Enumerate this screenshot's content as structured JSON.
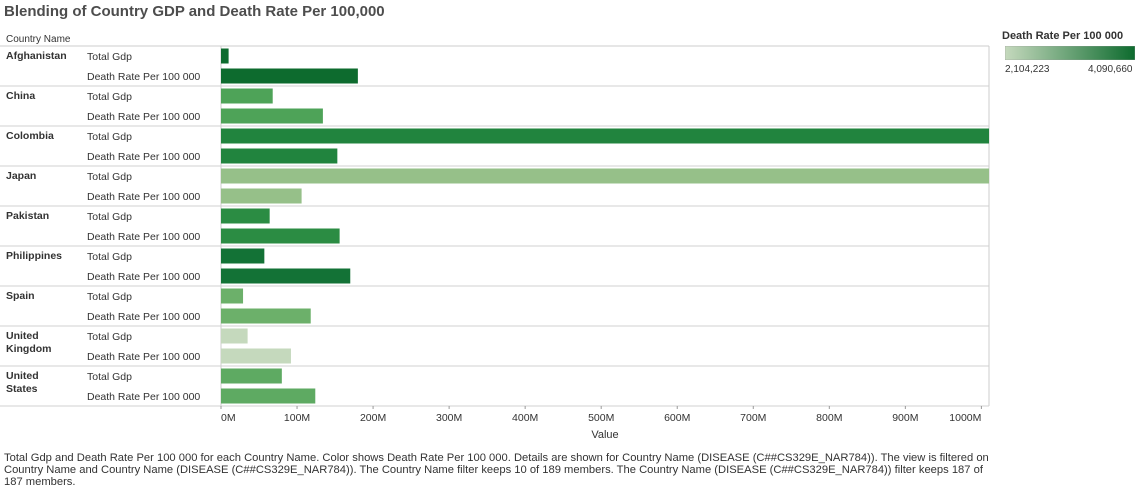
{
  "title": "Blending of Country GDP and Death Rate Per 100,000",
  "row_header": "Country Name",
  "legend": {
    "title": "Death Rate Per 100 000",
    "min_label": "2,104,223",
    "max_label": "4,090,660",
    "color_low": "#c5d9bd",
    "color_high": "#0d6b2e"
  },
  "caption": "Total Gdp and Death Rate Per 100 000 for each Country Name.  Color shows Death Rate Per 100 000.  Details are shown for Country Name (DISEASE (C##CS329E_NAR784)). The view is filtered on Country Name and Country Name (DISEASE (C##CS329E_NAR784)). The Country Name filter keeps 10 of 189 members. The Country Name (DISEASE (C##CS329E_NAR784)) filter keeps 187 of 187 members.",
  "chart_data": {
    "type": "bar",
    "orientation": "horizontal",
    "xlabel": "Value",
    "xlim": [
      0,
      1010
    ],
    "x_ticks": [
      0,
      100,
      200,
      300,
      400,
      500,
      600,
      700,
      800,
      900,
      1000
    ],
    "x_tick_labels": [
      "0M",
      "100M",
      "200M",
      "300M",
      "400M",
      "500M",
      "600M",
      "700M",
      "800M",
      "900M",
      "1000M"
    ],
    "measures": [
      "Total Gdp",
      "Death Rate Per 100 000"
    ],
    "countries": [
      {
        "name": "Afghanistan",
        "values": [
          10,
          180
        ],
        "color": "#0d6b2e"
      },
      {
        "name": "China",
        "values": [
          68,
          134
        ],
        "color": "#4ea358"
      },
      {
        "name": "Colombia",
        "values": [
          1010,
          153
        ],
        "color": "#21843e"
      },
      {
        "name": "Japan",
        "values": [
          1010,
          106
        ],
        "color": "#96c089"
      },
      {
        "name": "Pakistan",
        "values": [
          64,
          156
        ],
        "color": "#2b8c43"
      },
      {
        "name": "Philippines",
        "values": [
          57,
          170
        ],
        "color": "#137236"
      },
      {
        "name": "Spain",
        "values": [
          29,
          118
        ],
        "color": "#6cb06a"
      },
      {
        "name": "United Kingdom",
        "values": [
          35,
          92
        ],
        "color": "#c5d9bd"
      },
      {
        "name": "United States",
        "values": [
          80,
          124
        ],
        "color": "#5eaa62"
      }
    ]
  }
}
